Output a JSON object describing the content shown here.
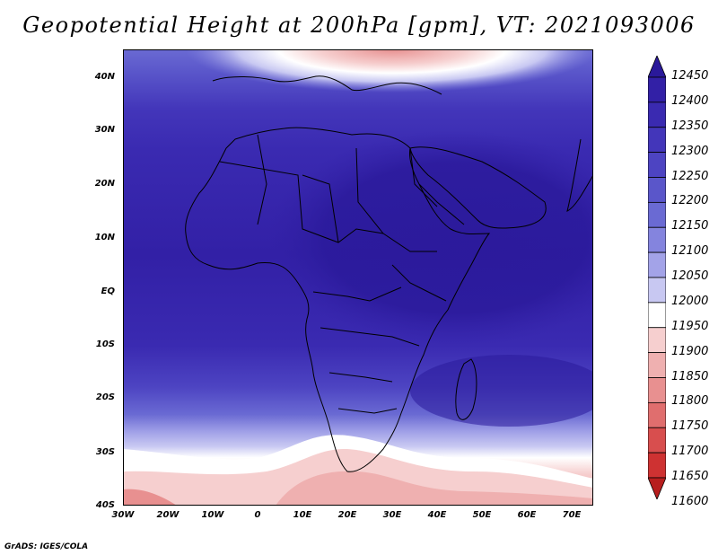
{
  "title": "Geopotential Height at 200hPa [gpm], VT: 2021093006",
  "credit": "GrADS: IGES/COLA",
  "map": {
    "type": "filled-contour",
    "variable": "Geopotential Height",
    "level": "200hPa",
    "units": "gpm",
    "valid_time": "2021093006",
    "lon_range": [
      -30,
      75
    ],
    "lat_range": [
      -40,
      45
    ]
  },
  "lat_labels": [
    "40N",
    "30N",
    "20N",
    "10N",
    "EQ",
    "10S",
    "20S",
    "30S",
    "40S"
  ],
  "lon_labels": [
    "30W",
    "20W",
    "10W",
    "0",
    "10E",
    "20E",
    "30E",
    "40E",
    "50E",
    "60E",
    "70E"
  ],
  "colorbar": {
    "labels": [
      "12450",
      "12400",
      "12350",
      "12300",
      "12250",
      "12200",
      "12150",
      "12100",
      "12050",
      "12000",
      "11950",
      "11900",
      "11850",
      "11800",
      "11750",
      "11700",
      "11650",
      "11600"
    ],
    "colors": [
      "#2a199a",
      "#3220a6",
      "#3a2ab1",
      "#4336ba",
      "#4d44c2",
      "#5a56ca",
      "#6a6ad3",
      "#8484de",
      "#a3a3e8",
      "#c8c8f2",
      "#ffffff",
      "#f6cfcf",
      "#efb0b0",
      "#e89090",
      "#e06e6e",
      "#d84e4e",
      "#ce3232",
      "#b71e1e"
    ]
  }
}
